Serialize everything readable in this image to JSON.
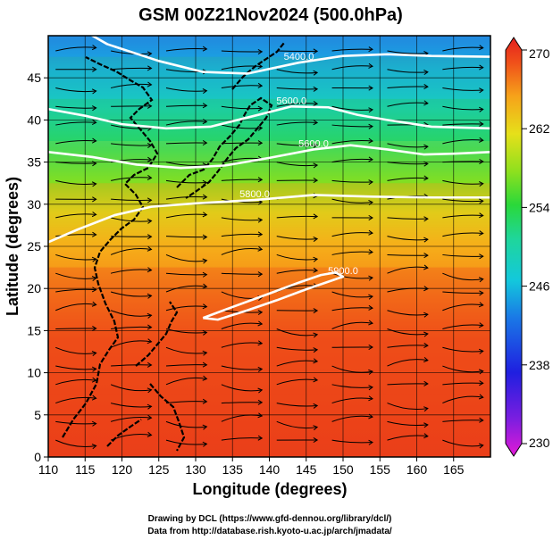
{
  "chart_data": {
    "type": "heatmap",
    "title": "GSM 00Z21Nov2024 (500.0hPa)",
    "xlabel": "Longitude (degrees)",
    "ylabel": "Latitude  (degrees)",
    "xlim": [
      110,
      170
    ],
    "ylim": [
      0,
      50
    ],
    "x_ticks": [
      110,
      115,
      120,
      125,
      130,
      135,
      140,
      145,
      150,
      155,
      160,
      165
    ],
    "y_ticks": [
      0,
      5,
      10,
      15,
      20,
      25,
      30,
      35,
      40,
      45
    ],
    "grid": true,
    "colorbar": {
      "min": 230,
      "max": 270,
      "ticks": [
        230,
        238,
        246,
        254,
        262,
        270
      ],
      "colors": [
        "#e21ad6",
        "#7a1ee0",
        "#1f1fe0",
        "#1a78e6",
        "#13c8dc",
        "#1fd69a",
        "#2ad83a",
        "#8ee01e",
        "#e6e01a",
        "#f6a21a",
        "#f0501a",
        "#e4201e"
      ]
    },
    "field_rows": [
      {
        "lat": 0,
        "value": 268
      },
      {
        "lat": 5,
        "value": 268
      },
      {
        "lat": 10,
        "value": 267.5
      },
      {
        "lat": 15,
        "value": 267
      },
      {
        "lat": 20,
        "value": 266
      },
      {
        "lat": 25,
        "value": 264.5
      },
      {
        "lat": 30,
        "value": 262
      },
      {
        "lat": 35,
        "value": 257
      },
      {
        "lat": 40,
        "value": 251
      },
      {
        "lat": 45,
        "value": 246.5
      },
      {
        "lat": 50,
        "value": 243
      }
    ],
    "contours": [
      {
        "label": "5400.0",
        "points": [
          [
            114,
            51
          ],
          [
            118,
            49
          ],
          [
            125,
            47
          ],
          [
            131,
            45.7
          ],
          [
            137,
            45.5
          ],
          [
            144,
            46.8
          ],
          [
            150,
            47.6
          ],
          [
            156,
            47.8
          ],
          [
            162,
            47.6
          ],
          [
            170,
            47.5
          ]
        ]
      },
      {
        "label": "5600.0",
        "points": [
          [
            110,
            41.3
          ],
          [
            115,
            40.5
          ],
          [
            120,
            39.5
          ],
          [
            126,
            39
          ],
          [
            132,
            39.2
          ],
          [
            138,
            40.5
          ],
          [
            143,
            41.6
          ],
          [
            148,
            41.5
          ],
          [
            152,
            40.6
          ],
          [
            156,
            40
          ],
          [
            162,
            39.2
          ],
          [
            170,
            39
          ]
        ]
      },
      {
        "label": "5600.0",
        "points": [
          [
            110,
            36.2
          ],
          [
            116,
            35.6
          ],
          [
            122,
            34.7
          ],
          [
            128,
            34.3
          ],
          [
            134,
            34.6
          ],
          [
            140,
            35.5
          ],
          [
            146,
            36.5
          ],
          [
            151,
            37
          ],
          [
            156,
            36.5
          ],
          [
            161,
            35.9
          ],
          [
            165,
            36
          ],
          [
            170,
            36.2
          ]
        ]
      },
      {
        "label": "5800.0",
        "points": [
          [
            110,
            25.5
          ],
          [
            114,
            27
          ],
          [
            119,
            28.7
          ],
          [
            124,
            29.7
          ],
          [
            130,
            30.1
          ],
          [
            138,
            30.5
          ],
          [
            146,
            31.1
          ],
          [
            154,
            30.9
          ],
          [
            162,
            30.8
          ],
          [
            170,
            30.8
          ]
        ]
      },
      {
        "label": "5900.0",
        "points": [
          [
            131,
            16.5
          ],
          [
            135,
            17.8
          ],
          [
            140,
            19.4
          ],
          [
            144,
            20.7
          ],
          [
            147,
            21.6
          ],
          [
            149,
            21.9
          ],
          [
            150,
            21.4
          ],
          [
            148,
            20.8
          ],
          [
            145,
            19.9
          ],
          [
            141,
            18.6
          ],
          [
            137,
            17.4
          ],
          [
            133,
            16.3
          ],
          [
            131,
            16.5
          ]
        ]
      }
    ],
    "credits": [
      "Drawing by DCL (https://www.gfd-dennou.org/library/dcl/)",
      "Data from http://database.rish.kyoto-u.ac.jp/arch/jmadata/"
    ]
  }
}
